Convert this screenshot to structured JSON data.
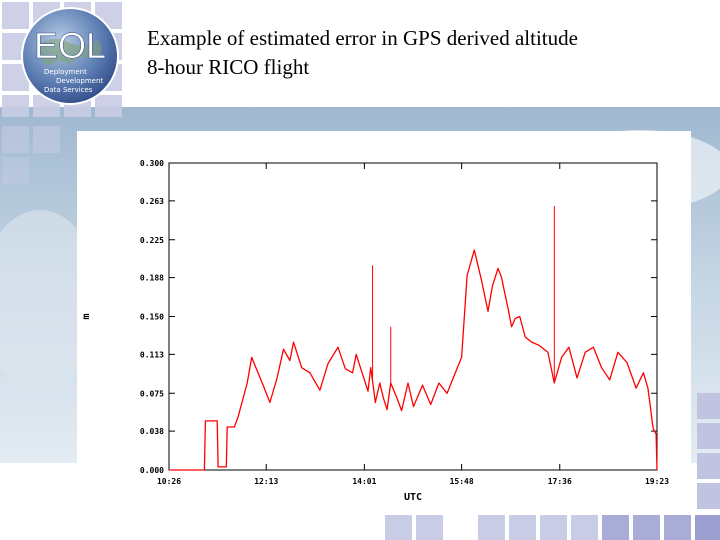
{
  "slide": {
    "title_line1": "Example of estimated error in GPS derived altitude",
    "title_line2": "8-hour RICO flight"
  },
  "logo": {
    "text": "EOL",
    "sub1": "Deployment",
    "sub2": "Development",
    "sub3": "Data Services"
  },
  "colors": {
    "series": "#ff0000",
    "axis": "#000000",
    "banner_band": "#c8d8e8",
    "deco_square": "#c0c4e0"
  },
  "chart_data": {
    "type": "line",
    "title": "",
    "xlabel": "UTC",
    "ylabel": "m",
    "xlim": [
      "10:26",
      "19:23"
    ],
    "ylim": [
      0.0,
      0.3
    ],
    "x_ticks": [
      "10:26",
      "12:13",
      "14:01",
      "15:48",
      "17:36",
      "19:23"
    ],
    "y_ticks": [
      "0.000",
      "0.038",
      "0.075",
      "0.113",
      "0.150",
      "0.188",
      "0.225",
      "0.263",
      "0.300"
    ],
    "grid": false,
    "series": [
      {
        "color": "#ff0000",
        "x": [
          "10:26",
          "11:05",
          "11:06",
          "11:19",
          "11:20",
          "11:29",
          "11:30",
          "11:38",
          "11:42",
          "11:52",
          "11:57",
          "12:10",
          "12:17",
          "12:25",
          "12:32",
          "12:39",
          "12:43",
          "12:52",
          "13:01",
          "13:12",
          "13:21",
          "13:32",
          "13:40",
          "13:48",
          "13:52",
          "14:05",
          "14:08",
          "14:11",
          "14:13",
          "14:18",
          "14:22",
          "14:26",
          "14:30",
          "14:37",
          "14:42",
          "14:49",
          "14:55",
          "15:05",
          "15:14",
          "15:23",
          "15:32",
          "15:41",
          "15:48",
          "15:54",
          "16:02",
          "16:10",
          "16:17",
          "16:22",
          "16:28",
          "16:32",
          "16:35",
          "16:39",
          "16:43",
          "16:47",
          "16:52",
          "16:58",
          "17:05",
          "17:13",
          "17:23",
          "17:30",
          "17:38",
          "17:46",
          "17:55",
          "18:04",
          "18:13",
          "18:22",
          "18:31",
          "18:40",
          "18:50",
          "19:00",
          "19:08",
          "19:13",
          "19:16",
          "19:18",
          "19:19",
          "19:22",
          "19:23"
        ],
        "y": [
          0.0,
          0.0,
          0.048,
          0.048,
          0.003,
          0.003,
          0.042,
          0.042,
          0.052,
          0.085,
          0.11,
          0.082,
          0.066,
          0.09,
          0.118,
          0.107,
          0.125,
          0.1,
          0.095,
          0.078,
          0.104,
          0.12,
          0.099,
          0.095,
          0.113,
          0.077,
          0.1,
          0.08,
          0.066,
          0.085,
          0.07,
          0.059,
          0.085,
          0.07,
          0.058,
          0.085,
          0.062,
          0.083,
          0.064,
          0.085,
          0.075,
          0.095,
          0.11,
          0.19,
          0.215,
          0.185,
          0.155,
          0.18,
          0.197,
          0.188,
          0.175,
          0.158,
          0.14,
          0.148,
          0.15,
          0.13,
          0.125,
          0.122,
          0.115,
          0.085,
          0.11,
          0.12,
          0.09,
          0.115,
          0.12,
          0.1,
          0.088,
          0.115,
          0.105,
          0.08,
          0.095,
          0.08,
          0.06,
          0.045,
          0.04,
          0.035,
          0.0
        ]
      }
    ],
    "spikes": [
      {
        "x": "14:10",
        "y": 0.2
      },
      {
        "x": "14:30",
        "y": 0.14
      },
      {
        "x": "17:30",
        "y": 0.258
      }
    ]
  }
}
